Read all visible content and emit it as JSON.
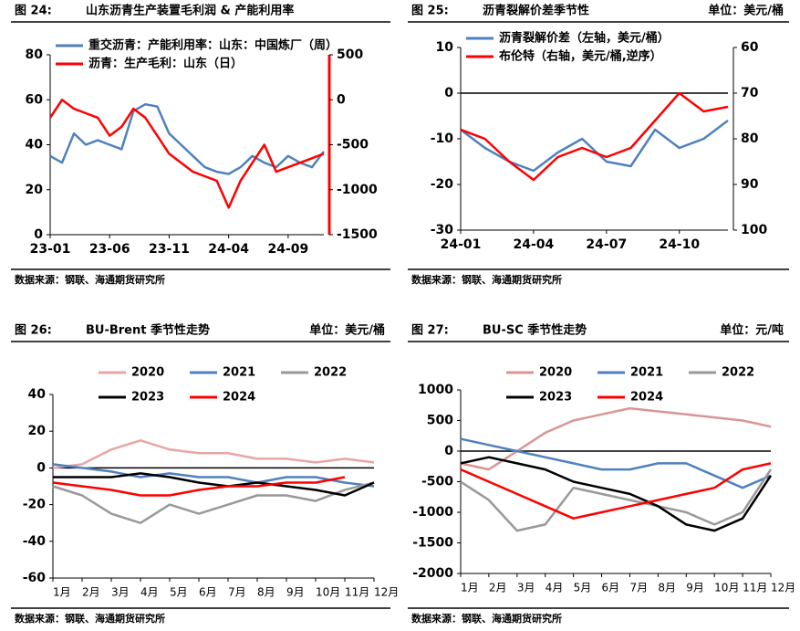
{
  "chart_data": [
    {
      "type": "line",
      "figure": "图 24:",
      "title": "山东沥青生产装置毛利润 & 产能利用率",
      "source": "数据来源：钢联、海通期货研究所",
      "categories": [
        "23-01",
        null,
        null,
        null,
        null,
        "23-06",
        null,
        null,
        null,
        null,
        "23-11",
        null,
        null,
        null,
        null,
        "24-04",
        null,
        null,
        null,
        null,
        "24-09",
        null,
        null,
        null
      ],
      "ylim": [
        0,
        80
      ],
      "yticks": [
        0,
        20,
        40,
        60,
        80
      ],
      "y2lim": [
        -1500,
        500
      ],
      "y2ticks": [
        -1500,
        -1000,
        -500,
        0,
        500
      ],
      "y2_inverted": false,
      "zero_line": false,
      "series": [
        {
          "name": "重交沥青：产能利用率：山东：中国炼厂（周）",
          "color": "#4f81bd",
          "values": [
            35,
            32,
            45,
            40,
            42,
            40,
            38,
            55,
            58,
            57,
            45,
            40,
            35,
            30,
            28,
            27,
            30,
            35,
            32,
            30,
            35,
            32,
            30,
            37
          ]
        },
        {
          "name": "沥青：生产毛利：山东（日）",
          "color": "#ff0000",
          "axis": "y2",
          "values": [
            -200,
            0,
            -100,
            -150,
            -200,
            -400,
            -300,
            -100,
            -200,
            -400,
            -600,
            -700,
            -800,
            -850,
            -900,
            -1200,
            -900,
            -700,
            -500,
            -800,
            -750,
            -700,
            -650,
            -600
          ]
        }
      ]
    },
    {
      "type": "line",
      "figure": "图 25:",
      "title": "沥青裂解价差季节性",
      "unit": "单位：美元/桶",
      "source": "数据来源：钢联、海通期货研究所",
      "categories": [
        "24-01",
        null,
        null,
        "24-04",
        null,
        null,
        "24-07",
        null,
        null,
        "24-10",
        null,
        null
      ],
      "ylim": [
        -30,
        10
      ],
      "yticks": [
        -30,
        -20,
        -10,
        0,
        10
      ],
      "y2lim": [
        60,
        100
      ],
      "y2ticks": [
        60,
        70,
        80,
        90,
        100
      ],
      "y2_inverted": true,
      "zero_line": true,
      "series": [
        {
          "name": "沥青裂解价差（左轴，美元/桶）",
          "color": "#4f81bd",
          "values": [
            -8,
            -12,
            -15,
            -17,
            -13,
            -10,
            -15,
            -16,
            -8,
            -12,
            -10,
            -6
          ]
        },
        {
          "name": "布伦特（右轴，美元/桶,逆序）",
          "color": "#ff0000",
          "axis": "y2",
          "values": [
            78,
            80,
            85,
            89,
            84,
            82,
            84,
            82,
            76,
            70,
            74,
            73
          ]
        }
      ]
    },
    {
      "type": "line",
      "figure": "图 26:",
      "title": "BU-Brent 季节性走势",
      "unit": "单位：美元/桶",
      "source": "数据来源：钢联、海通期货研究所",
      "categories": [
        "1月",
        "2月",
        "3月",
        "4月",
        "5月",
        "6月",
        "7月",
        "8月",
        "9月",
        "10月",
        "11月",
        "12月"
      ],
      "ylim": [
        -60,
        40
      ],
      "yticks": [
        -60,
        -40,
        -20,
        0,
        20,
        40
      ],
      "zero_line": true,
      "series": [
        {
          "name": "2020",
          "color": "#e6a6a6",
          "values": [
            0,
            2,
            10,
            15,
            10,
            8,
            8,
            5,
            5,
            3,
            5,
            3
          ]
        },
        {
          "name": "2021",
          "color": "#4f81bd",
          "values": [
            2,
            0,
            -2,
            -5,
            -3,
            -5,
            -5,
            -8,
            -5,
            -5,
            -8,
            -10
          ]
        },
        {
          "name": "2022",
          "color": "#999999",
          "values": [
            -10,
            -15,
            -25,
            -30,
            -20,
            -25,
            -20,
            -15,
            -15,
            -18,
            -12,
            -8
          ]
        },
        {
          "name": "2023",
          "color": "#000000",
          "values": [
            -5,
            -5,
            -5,
            -3,
            -5,
            -8,
            -10,
            -8,
            -10,
            -12,
            -15,
            -8
          ]
        },
        {
          "name": "2024",
          "color": "#ff0000",
          "values": [
            -8,
            -10,
            -12,
            -15,
            -15,
            -12,
            -10,
            -10,
            -8,
            -8,
            -5,
            null
          ]
        }
      ]
    },
    {
      "type": "line",
      "figure": "图 27:",
      "title": "BU-SC 季节性走势",
      "unit": "单位：元/吨",
      "source": "数据来源：钢联、海通期货研究所",
      "categories": [
        "1月",
        "2月",
        "3月",
        "4月",
        "5月",
        "6月",
        "7月",
        "8月",
        "9月",
        "10月",
        "11月",
        "12月"
      ],
      "ylim": [
        -2000,
        1000
      ],
      "yticks": [
        -2000,
        -1500,
        -1000,
        -500,
        0,
        500,
        1000
      ],
      "zero_line": true,
      "series": [
        {
          "name": "2020",
          "color": "#d99594",
          "values": [
            -200,
            -300,
            0,
            300,
            500,
            600,
            700,
            650,
            600,
            550,
            500,
            400
          ]
        },
        {
          "name": "2021",
          "color": "#4f81bd",
          "values": [
            200,
            100,
            0,
            -100,
            -200,
            -300,
            -300,
            -200,
            -200,
            -400,
            -600,
            -400
          ]
        },
        {
          "name": "2022",
          "color": "#999999",
          "values": [
            -500,
            -800,
            -1300,
            -1200,
            -600,
            -700,
            -800,
            -900,
            -1000,
            -1200,
            -1000,
            -300
          ]
        },
        {
          "name": "2023",
          "color": "#000000",
          "values": [
            -200,
            -100,
            -200,
            -300,
            -500,
            -600,
            -700,
            -900,
            -1200,
            -1300,
            -1100,
            -400
          ]
        },
        {
          "name": "2024",
          "color": "#ff0000",
          "values": [
            -300,
            -500,
            -700,
            -900,
            -1100,
            -1000,
            -900,
            -800,
            -700,
            -600,
            -300,
            -200
          ]
        }
      ]
    }
  ]
}
